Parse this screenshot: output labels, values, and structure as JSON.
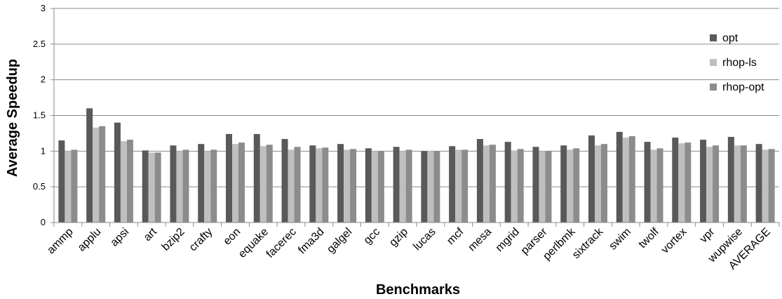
{
  "chart_data": {
    "type": "bar",
    "xlabel": "Benchmarks",
    "ylabel": "Average Speedup",
    "ylim": [
      0,
      3
    ],
    "yticks": [
      "0",
      "0.5",
      "1",
      "1.5",
      "2",
      "2.5",
      "3"
    ],
    "grid": true,
    "legend_position": "right",
    "categories": [
      "ammp",
      "applu",
      "apsi",
      "art",
      "bzip2",
      "crafty",
      "eon",
      "equake",
      "facerec",
      "fma3d",
      "galgel",
      "gcc",
      "gzip",
      "lucas",
      "mcf",
      "mesa",
      "mgrid",
      "parser",
      "perlbmk",
      "sixtrack",
      "swim",
      "twolf",
      "vortex",
      "vpr",
      "wupwise",
      "AVERAGE"
    ],
    "series": [
      {
        "name": "opt",
        "color": "#595959",
        "values": [
          1.15,
          1.6,
          1.4,
          1.01,
          1.08,
          1.1,
          1.24,
          1.24,
          1.17,
          1.08,
          1.1,
          1.04,
          1.06,
          1.0,
          1.07,
          1.17,
          1.13,
          1.06,
          1.08,
          1.22,
          1.27,
          1.13,
          1.19,
          1.16,
          1.2,
          1.1
        ]
      },
      {
        "name": "rhop-ls",
        "color": "#bfbfbf",
        "values": [
          1.0,
          1.33,
          1.14,
          0.98,
          1.0,
          1.0,
          1.1,
          1.07,
          1.02,
          1.04,
          1.02,
          1.0,
          1.0,
          1.0,
          1.02,
          1.08,
          1.01,
          1.0,
          1.02,
          1.08,
          1.19,
          1.02,
          1.11,
          1.06,
          1.08,
          1.02
        ]
      },
      {
        "name": "rhop-opt",
        "color": "#8c8c8c",
        "values": [
          1.02,
          1.35,
          1.16,
          0.98,
          1.02,
          1.02,
          1.12,
          1.09,
          1.06,
          1.05,
          1.03,
          1.0,
          1.02,
          1.0,
          1.02,
          1.09,
          1.03,
          1.0,
          1.04,
          1.1,
          1.21,
          1.04,
          1.12,
          1.08,
          1.08,
          1.03
        ]
      }
    ]
  }
}
